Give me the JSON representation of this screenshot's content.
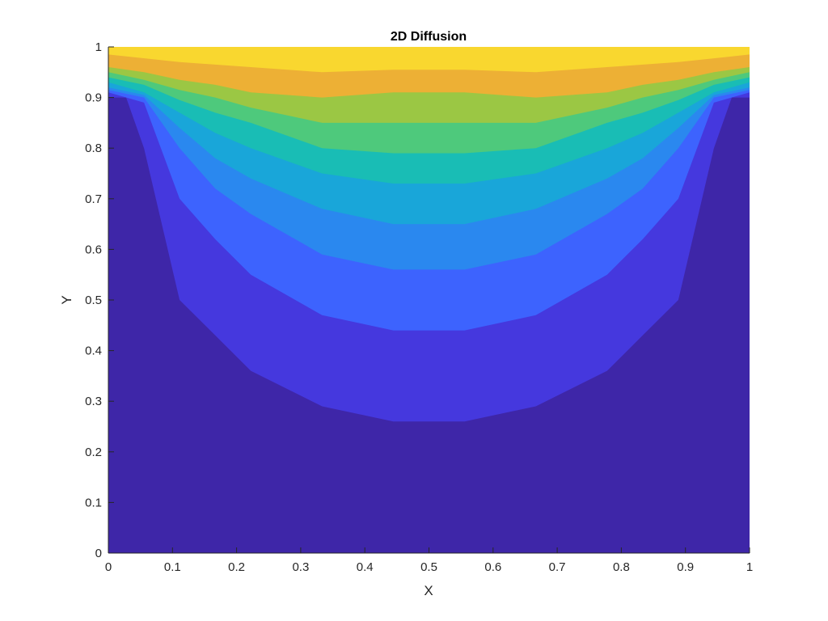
{
  "chart_data": {
    "type": "contour",
    "title": "2D Diffusion",
    "xlabel": "X",
    "ylabel": "Y",
    "xlim": [
      0,
      1
    ],
    "ylim": [
      0,
      1
    ],
    "xticks": [
      "0",
      "0.1",
      "0.2",
      "0.3",
      "0.4",
      "0.5",
      "0.6",
      "0.7",
      "0.8",
      "0.9",
      "1"
    ],
    "yticks": [
      "0",
      "0.1",
      "0.2",
      "0.3",
      "0.4",
      "0.5",
      "0.6",
      "0.7",
      "0.8",
      "0.9",
      "1"
    ],
    "xtick_values": [
      0,
      0.1,
      0.2,
      0.3,
      0.4,
      0.5,
      0.6,
      0.7,
      0.8,
      0.9,
      1
    ],
    "ytick_values": [
      0,
      0.1,
      0.2,
      0.3,
      0.4,
      0.5,
      0.6,
      0.7,
      0.8,
      0.9,
      1
    ],
    "grid": false,
    "colormap": "parula",
    "level_colors": [
      "#3e26a8",
      "#4538de",
      "#3d63fe",
      "#2a88ef",
      "#19a6d9",
      "#19bdb5",
      "#4ec97c",
      "#9bc744",
      "#edb035",
      "#f9d72f"
    ],
    "band_boundaries": [
      {
        "name": "level-1",
        "points": [
          [
            0,
            0.9
          ],
          [
            0.0278,
            0.9
          ],
          [
            0.0556,
            0.8
          ],
          [
            0.0833,
            0.65
          ],
          [
            0.1111,
            0.5
          ],
          [
            0.1667,
            0.43
          ],
          [
            0.2222,
            0.36
          ],
          [
            0.3333,
            0.29
          ],
          [
            0.4444,
            0.26
          ],
          [
            0.5556,
            0.26
          ],
          [
            0.6667,
            0.29
          ],
          [
            0.7778,
            0.36
          ],
          [
            0.8333,
            0.43
          ],
          [
            0.8889,
            0.5
          ],
          [
            0.9167,
            0.65
          ],
          [
            0.9444,
            0.8
          ],
          [
            0.9722,
            0.9
          ],
          [
            1,
            0.9
          ]
        ]
      },
      {
        "name": "level-2",
        "points": [
          [
            0,
            0.91
          ],
          [
            0.0556,
            0.89
          ],
          [
            0.1111,
            0.7
          ],
          [
            0.1667,
            0.62
          ],
          [
            0.2222,
            0.55
          ],
          [
            0.3333,
            0.47
          ],
          [
            0.4444,
            0.44
          ],
          [
            0.5556,
            0.44
          ],
          [
            0.6667,
            0.47
          ],
          [
            0.7778,
            0.55
          ],
          [
            0.8333,
            0.62
          ],
          [
            0.8889,
            0.7
          ],
          [
            0.9444,
            0.89
          ],
          [
            1,
            0.91
          ]
        ]
      },
      {
        "name": "level-3",
        "points": [
          [
            0,
            0.915
          ],
          [
            0.0556,
            0.9
          ],
          [
            0.1111,
            0.8
          ],
          [
            0.1667,
            0.72
          ],
          [
            0.2222,
            0.67
          ],
          [
            0.3333,
            0.59
          ],
          [
            0.4444,
            0.56
          ],
          [
            0.5556,
            0.56
          ],
          [
            0.6667,
            0.59
          ],
          [
            0.7778,
            0.67
          ],
          [
            0.8333,
            0.72
          ],
          [
            0.8889,
            0.8
          ],
          [
            0.9444,
            0.9
          ],
          [
            1,
            0.915
          ]
        ]
      },
      {
        "name": "level-4",
        "points": [
          [
            0,
            0.92
          ],
          [
            0.0556,
            0.905
          ],
          [
            0.1111,
            0.84
          ],
          [
            0.1667,
            0.78
          ],
          [
            0.2222,
            0.74
          ],
          [
            0.3333,
            0.68
          ],
          [
            0.4444,
            0.65
          ],
          [
            0.5556,
            0.65
          ],
          [
            0.6667,
            0.68
          ],
          [
            0.7778,
            0.74
          ],
          [
            0.8333,
            0.78
          ],
          [
            0.8889,
            0.84
          ],
          [
            0.9444,
            0.905
          ],
          [
            1,
            0.92
          ]
        ]
      },
      {
        "name": "level-5",
        "points": [
          [
            0,
            0.93
          ],
          [
            0.0556,
            0.91
          ],
          [
            0.1111,
            0.87
          ],
          [
            0.1667,
            0.83
          ],
          [
            0.2222,
            0.8
          ],
          [
            0.3333,
            0.75
          ],
          [
            0.4444,
            0.73
          ],
          [
            0.5556,
            0.73
          ],
          [
            0.6667,
            0.75
          ],
          [
            0.7778,
            0.8
          ],
          [
            0.8333,
            0.83
          ],
          [
            0.8889,
            0.87
          ],
          [
            0.9444,
            0.91
          ],
          [
            1,
            0.93
          ]
        ]
      },
      {
        "name": "level-6",
        "points": [
          [
            0,
            0.94
          ],
          [
            0.0556,
            0.925
          ],
          [
            0.1111,
            0.895
          ],
          [
            0.1667,
            0.87
          ],
          [
            0.2222,
            0.85
          ],
          [
            0.3333,
            0.8
          ],
          [
            0.4444,
            0.79
          ],
          [
            0.5556,
            0.79
          ],
          [
            0.6667,
            0.8
          ],
          [
            0.7778,
            0.85
          ],
          [
            0.8333,
            0.87
          ],
          [
            0.8889,
            0.895
          ],
          [
            0.9444,
            0.925
          ],
          [
            1,
            0.94
          ]
        ]
      },
      {
        "name": "level-7",
        "points": [
          [
            0,
            0.95
          ],
          [
            0.0556,
            0.935
          ],
          [
            0.1111,
            0.915
          ],
          [
            0.1667,
            0.9
          ],
          [
            0.2222,
            0.88
          ],
          [
            0.3333,
            0.85
          ],
          [
            0.4444,
            0.85
          ],
          [
            0.5556,
            0.85
          ],
          [
            0.6667,
            0.85
          ],
          [
            0.7778,
            0.88
          ],
          [
            0.8333,
            0.9
          ],
          [
            0.8889,
            0.915
          ],
          [
            0.9444,
            0.935
          ],
          [
            1,
            0.95
          ]
        ]
      },
      {
        "name": "level-8",
        "points": [
          [
            0,
            0.96
          ],
          [
            0.0556,
            0.95
          ],
          [
            0.1111,
            0.935
          ],
          [
            0.1667,
            0.925
          ],
          [
            0.2222,
            0.91
          ],
          [
            0.3333,
            0.9
          ],
          [
            0.4444,
            0.91
          ],
          [
            0.5556,
            0.91
          ],
          [
            0.6667,
            0.9
          ],
          [
            0.7778,
            0.91
          ],
          [
            0.8333,
            0.925
          ],
          [
            0.8889,
            0.935
          ],
          [
            0.9444,
            0.95
          ],
          [
            1,
            0.96
          ]
        ]
      },
      {
        "name": "level-9",
        "points": [
          [
            0,
            0.985
          ],
          [
            0.1111,
            0.97
          ],
          [
            0.2222,
            0.96
          ],
          [
            0.3333,
            0.95
          ],
          [
            0.4444,
            0.955
          ],
          [
            0.5556,
            0.955
          ],
          [
            0.6667,
            0.95
          ],
          [
            0.7778,
            0.96
          ],
          [
            0.8889,
            0.97
          ],
          [
            1,
            0.985
          ]
        ]
      }
    ]
  }
}
